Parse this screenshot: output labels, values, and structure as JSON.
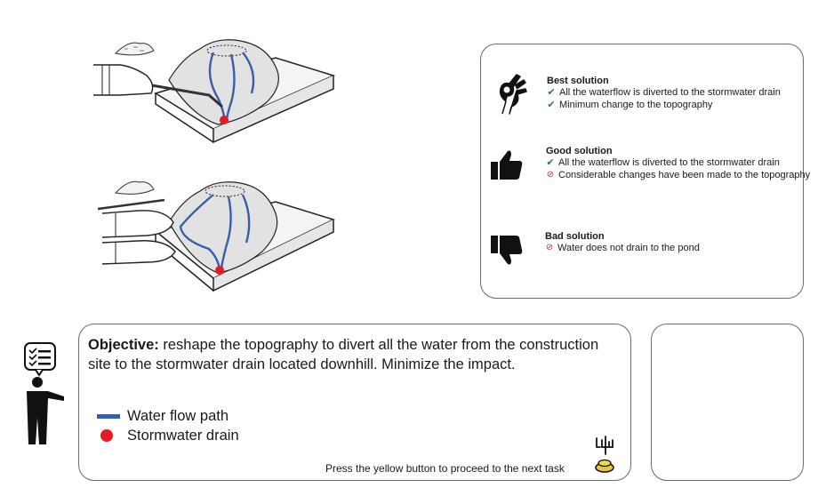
{
  "solutions": [
    {
      "icon": "ok-hand-icon",
      "title": "Best solution",
      "items": [
        {
          "status": "check",
          "text": "All the waterflow is diverted to the stormwater drain"
        },
        {
          "status": "check",
          "text": "Minimum change to the topography"
        }
      ]
    },
    {
      "icon": "thumbs-up-icon",
      "title": "Good solution",
      "items": [
        {
          "status": "check",
          "text": "All the waterflow is diverted to the stormwater drain"
        },
        {
          "status": "no",
          "text": "Considerable changes have been made to the topography"
        }
      ]
    },
    {
      "icon": "thumbs-down-icon",
      "title": "Bad solution",
      "items": [
        {
          "status": "no",
          "text": "Water does not drain to the pond"
        }
      ]
    }
  ],
  "objective": {
    "label": "Objective:",
    "text": " reshape the topography to divert all the water from the construction site to the stormwater drain located downhill. Minimize the impact."
  },
  "legend": [
    {
      "type": "line",
      "label": "Water flow path",
      "color": "#3a5da8"
    },
    {
      "type": "dot",
      "label": "Stormwater drain",
      "color": "#e31b23"
    }
  ],
  "footer_note": "Press the yellow button to proceed to the next task",
  "colors": {
    "water": "#3a5da8",
    "drain": "#e31b23",
    "button": "#e8c838",
    "check": "#2e7d32",
    "no": "#d32f2f"
  }
}
